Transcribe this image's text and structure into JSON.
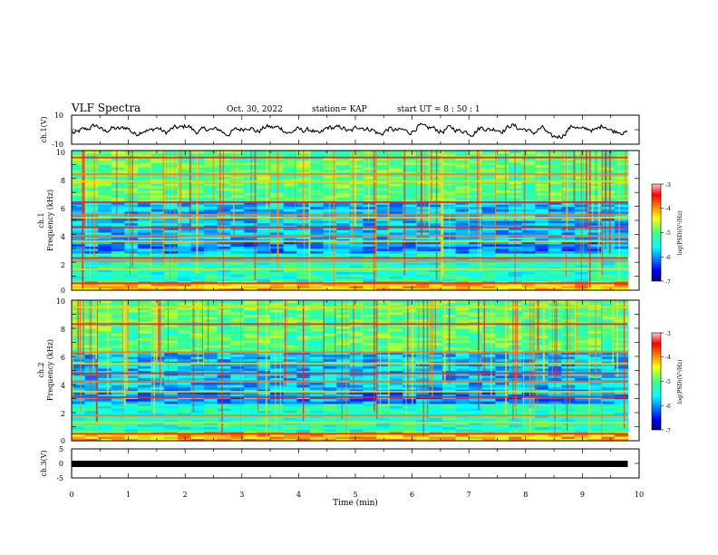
{
  "header": {
    "title": "VLF Spectra",
    "date": "Oct. 30, 2022",
    "station": "station= KAP",
    "start_time": "start  UT =   8  : 50 : 1"
  },
  "chart_data": [
    {
      "type": "line",
      "panel": "ch1-waveform",
      "ylabel": "ch.1(V)",
      "ylim": [
        -10,
        10
      ],
      "yticks": [
        "10",
        "-10"
      ],
      "xlim": [
        0,
        10
      ],
      "x_end": 9.8,
      "x_unit": "min"
    },
    {
      "type": "heatmap",
      "panel": "ch1-spectrogram",
      "ylabel": "ch.1",
      "ylabel2": "Frequency (kHz)",
      "ylim": [
        0,
        10
      ],
      "yticks": [
        "0",
        "2",
        "4",
        "6",
        "8",
        "10"
      ],
      "xlim": [
        0,
        10
      ],
      "x_end": 9.8,
      "lines_khz": [
        0.5,
        1.5,
        2.1,
        2.3,
        3.5,
        3.9,
        4.5,
        5.2,
        5.4,
        6.3,
        7.8,
        8.3,
        9.5
      ],
      "colorbar": {
        "label": "log(PSD)(V²/Hz)",
        "range": [
          -7,
          -3
        ],
        "ticks": [
          "-3",
          "-4",
          "-5",
          "-6",
          "-7"
        ]
      }
    },
    {
      "type": "heatmap",
      "panel": "ch2-spectrogram",
      "ylabel": "ch.2",
      "ylabel2": "Frequency (kHz)",
      "ylim": [
        0,
        10
      ],
      "yticks": [
        "0",
        "2",
        "4",
        "6",
        "8",
        "10"
      ],
      "xlim": [
        0,
        10
      ],
      "x_end": 9.8,
      "lines_khz": [
        0.5,
        1.3,
        1.8,
        3.1,
        3.5,
        4.2,
        4.8,
        5.5,
        6.3,
        8.3,
        9.5
      ],
      "colorbar": {
        "label": "log(PSD)(V²/Hz)",
        "range": [
          -7,
          -3
        ],
        "ticks": [
          "-3",
          "-4",
          "-5",
          "-6",
          "-7"
        ]
      }
    },
    {
      "type": "line",
      "panel": "ch3-waveform",
      "ylabel": "ch.3(V)",
      "ylim": [
        -5,
        5
      ],
      "yticks": [
        "5",
        "0",
        "-5"
      ],
      "level": 0,
      "xlim": [
        0,
        10
      ],
      "x_end": 9.8,
      "xlabel": "Time  (min)",
      "xticks": [
        "0",
        "1",
        "2",
        "3",
        "4",
        "5",
        "6",
        "7",
        "8",
        "9",
        "10"
      ]
    }
  ]
}
